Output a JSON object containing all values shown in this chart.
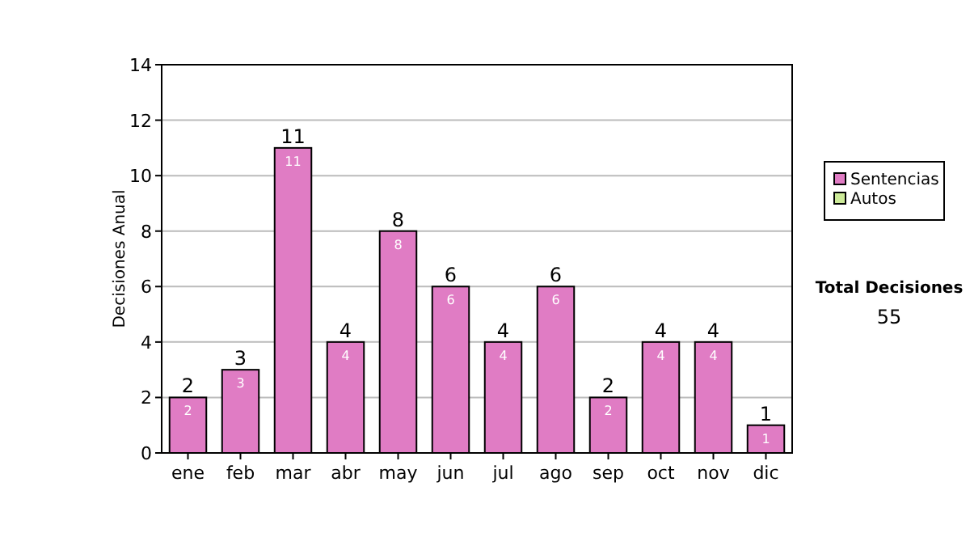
{
  "chart_data": {
    "type": "bar",
    "ylabel": "Decisiones Anual",
    "categories": [
      "ene",
      "feb",
      "mar",
      "abr",
      "may",
      "jun",
      "jul",
      "ago",
      "sep",
      "oct",
      "nov",
      "dic"
    ],
    "series": [
      {
        "name": "Sentencias",
        "color": "#e07cc4",
        "values": [
          2,
          3,
          11,
          4,
          8,
          6,
          4,
          6,
          2,
          4,
          4,
          1
        ],
        "value_labels": [
          "2",
          "3",
          "11",
          "4",
          "8",
          "6",
          "4",
          "6",
          "2",
          "4",
          "4",
          "1"
        ]
      },
      {
        "name": "Autos",
        "color": "#ccea98",
        "values": [
          0,
          0,
          0,
          0,
          0,
          0,
          0,
          0,
          0,
          0,
          0,
          0
        ]
      }
    ],
    "stacked": true,
    "totals": [
      "2",
      "3",
      "11",
      "4",
      "8",
      "6",
      "4",
      "6",
      "2",
      "4",
      "4",
      "1"
    ],
    "ylim": [
      0,
      14
    ],
    "yticks": [
      0,
      2,
      4,
      6,
      8,
      10,
      12,
      14
    ],
    "grid": "y",
    "legend": "right",
    "annotations": [
      "Total Decisiones",
      "55"
    ]
  }
}
